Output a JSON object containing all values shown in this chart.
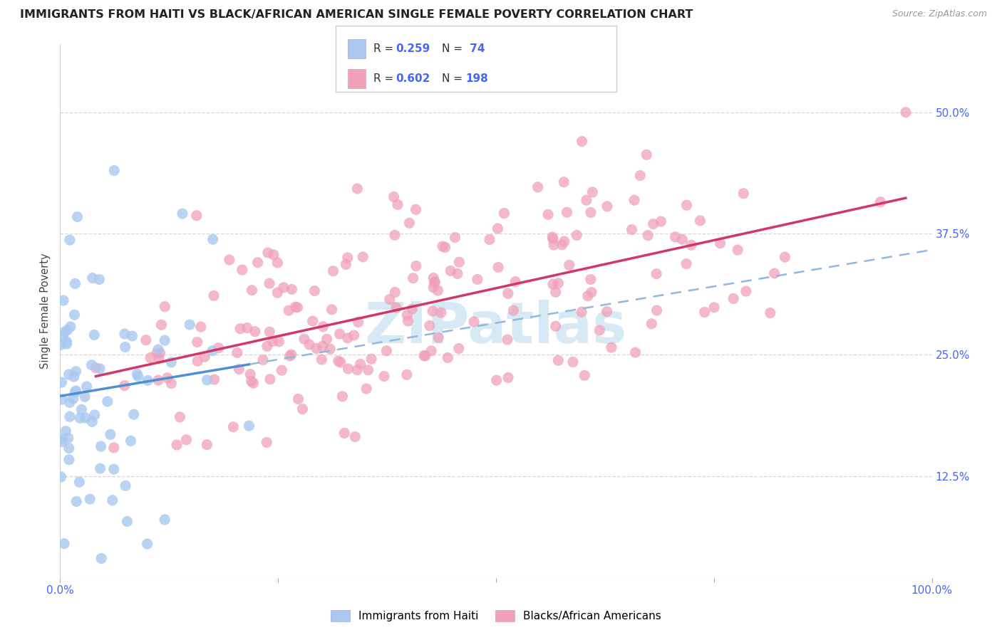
{
  "title": "IMMIGRANTS FROM HAITI VS BLACK/AFRICAN AMERICAN SINGLE FEMALE POVERTY CORRELATION CHART",
  "source": "Source: ZipAtlas.com",
  "ylabel": "Single Female Poverty",
  "legend1_label": "Immigrants from Haiti",
  "legend2_label": "Blacks/African Americans",
  "R1": 0.259,
  "N1": 74,
  "R2": 0.602,
  "N2": 198,
  "color1": "#aac8f0",
  "color2": "#f0a0b8",
  "line1_color": "#5090d0",
  "line2_color": "#d03868",
  "dashed_line_color": "#90b8e0",
  "watermark_text": "ZIPatlas",
  "watermark_color": "#b8d8f0",
  "title_fontsize": 11.5,
  "source_fontsize": 9,
  "label_color": "#4466ff",
  "ytick_vals": [
    0.125,
    0.25,
    0.375,
    0.5
  ],
  "ytick_labels": [
    "12.5%",
    "25.0%",
    "37.5%",
    "50.0%"
  ],
  "xlim": [
    0.0,
    1.0
  ],
  "ylim": [
    0.02,
    0.57
  ],
  "background_color": "#ffffff",
  "seed1": 42,
  "seed2": 99
}
